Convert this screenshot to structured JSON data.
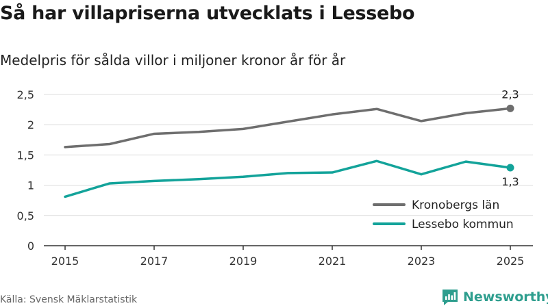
{
  "header": {
    "title": "Så har villapriserna utvecklats i Lessebo",
    "subtitle": "Medelpris för sålda villor i miljoner kronor år för år"
  },
  "footer": {
    "source": "Källa: Svensk Mäklarstatistik",
    "brand": "Newsworthy"
  },
  "chart_data": {
    "type": "line",
    "title": "Så har villapriserna utvecklats i Lessebo",
    "subtitle": "Medelpris för sålda villor i miljoner kronor år för år",
    "xlabel": "",
    "ylabel": "",
    "x": [
      2015,
      2016,
      2017,
      2018,
      2019,
      2020,
      2021,
      2022,
      2023,
      2024,
      2025
    ],
    "xlim": [
      2015,
      2025
    ],
    "ylim": [
      0,
      2.5
    ],
    "x_ticks": [
      2015,
      2017,
      2019,
      2021,
      2023,
      2025
    ],
    "x_tick_labels": [
      "2015",
      "2017",
      "2019",
      "2021",
      "2023",
      "2025"
    ],
    "y_ticks": [
      0,
      0.5,
      1,
      1.5,
      2,
      2.5
    ],
    "y_tick_labels": [
      "0",
      "0,5",
      "1",
      "1,5",
      "2",
      "2,5"
    ],
    "grid": true,
    "legend_position": "bottom-right",
    "series": [
      {
        "name": "Kronobergs län",
        "color": "#6e6e6e",
        "values": [
          1.63,
          1.68,
          1.85,
          1.88,
          1.93,
          2.05,
          2.17,
          2.26,
          2.06,
          2.19,
          2.27
        ],
        "end_label": "2,3",
        "end_label_position": "above"
      },
      {
        "name": "Lessebo kommun",
        "color": "#13a39a",
        "values": [
          0.81,
          1.03,
          1.07,
          1.1,
          1.14,
          1.2,
          1.21,
          1.4,
          1.18,
          1.39,
          1.29
        ],
        "end_label": "1,3",
        "end_label_position": "below"
      }
    ]
  }
}
